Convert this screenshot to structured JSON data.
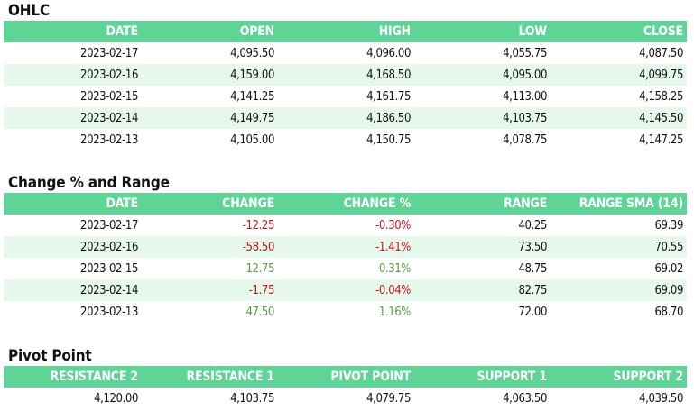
{
  "ohlc": {
    "title": "OHLC",
    "headers": [
      "DATE",
      "OPEN",
      "HIGH",
      "LOW",
      "CLOSE"
    ],
    "rows": [
      [
        "2023-02-17",
        "4,095.50",
        "4,096.00",
        "4,055.75",
        "4,087.50"
      ],
      [
        "2023-02-16",
        "4,159.00",
        "4,168.50",
        "4,095.00",
        "4,099.75"
      ],
      [
        "2023-02-15",
        "4,141.25",
        "4,161.75",
        "4,113.00",
        "4,158.25"
      ],
      [
        "2023-02-14",
        "4,149.75",
        "4,186.50",
        "4,103.75",
        "4,145.50"
      ],
      [
        "2023-02-13",
        "4,105.00",
        "4,150.75",
        "4,078.75",
        "4,147.25"
      ]
    ]
  },
  "change": {
    "title": "Change % and Range",
    "headers": [
      "DATE",
      "CHANGE",
      "CHANGE %",
      "RANGE",
      "RANGE SMA (14)"
    ],
    "rows": [
      [
        "2023-02-17",
        "-12.25",
        "-0.30%",
        "40.25",
        "69.39"
      ],
      [
        "2023-02-16",
        "-58.50",
        "-1.41%",
        "73.50",
        "70.55"
      ],
      [
        "2023-02-15",
        "12.75",
        "0.31%",
        "48.75",
        "69.02"
      ],
      [
        "2023-02-14",
        "-1.75",
        "-0.04%",
        "82.75",
        "69.09"
      ],
      [
        "2023-02-13",
        "47.50",
        "1.16%",
        "72.00",
        "68.70"
      ]
    ],
    "colors": {
      "negative": "#c0161a",
      "positive": "#5d9a44"
    }
  },
  "pivot": {
    "title": "Pivot Point",
    "headers": [
      "RESISTANCE 2",
      "RESISTANCE 1",
      "PIVOT POINT",
      "SUPPORT 1",
      "SUPPORT 2"
    ],
    "rows": [
      [
        "4,120.00",
        "4,103.75",
        "4,079.75",
        "4,063.50",
        "4,039.50"
      ]
    ]
  },
  "colors": {
    "header_bg": "#5ed497",
    "header_text": "#ffffff",
    "stripe_bg": "#e6f8ec"
  }
}
